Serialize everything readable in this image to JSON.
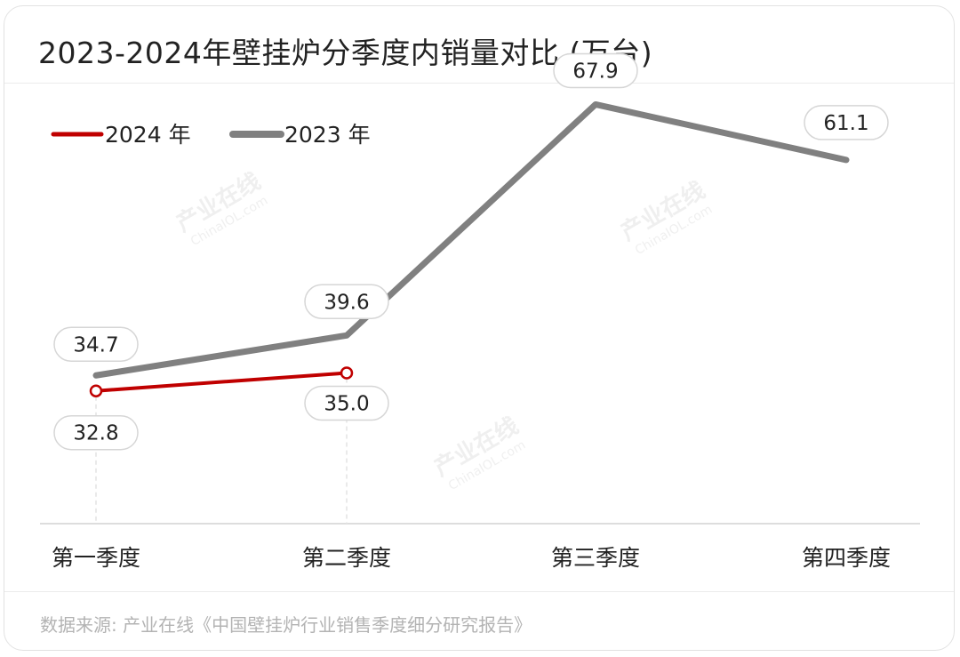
{
  "title": "2023-2024年壁挂炉分季度内销量对比 (万台)",
  "source": "数据来源: 产业在线《中国壁挂炉行业销售季度细分研究报告》",
  "watermark": "产业在线 ChinaIOL.com",
  "colors": {
    "series_2024": "#c00000",
    "series_2023": "#808080",
    "axis": "#dddddd"
  },
  "chart_data": {
    "type": "line",
    "categories": [
      "第一季度",
      "第二季度",
      "第三季度",
      "第四季度"
    ],
    "series": [
      {
        "name": "2024 年",
        "values": [
          32.8,
          35.0,
          null,
          null
        ]
      },
      {
        "name": "2023 年",
        "values": [
          34.7,
          39.6,
          67.9,
          61.1
        ]
      }
    ],
    "data_labels": {
      "2024 年": [
        "32.8",
        "35.0",
        null,
        null
      ],
      "2023 年": [
        "34.7",
        "39.6",
        "67.9",
        "61.1"
      ]
    },
    "legend_position": "top-left",
    "grid": false
  }
}
